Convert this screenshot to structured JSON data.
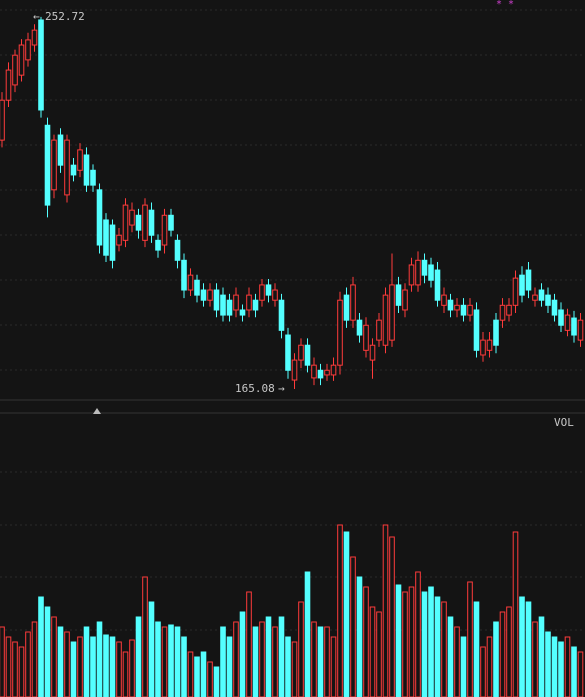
{
  "chart_data": {
    "type": "candlestick",
    "up_color": "#ff3b3b",
    "down_color": "#54ffff",
    "ylim": [
      162.5,
      256.7
    ],
    "open": [
      223.7,
      233.1,
      236.7,
      239.0,
      242.6,
      246.1,
      252.0,
      227.2,
      212.0,
      224.9,
      210.8,
      217.8,
      216.6,
      220.2,
      216.6,
      212.0,
      204.9,
      203.7,
      199.0,
      200.1,
      203.7,
      206.0,
      200.1,
      207.2,
      200.1,
      199.0,
      206.0,
      200.1,
      195.4,
      188.4,
      190.7,
      188.4,
      186.0,
      188.4,
      187.2,
      186.0,
      183.7,
      183.7,
      183.7,
      186.0,
      186.0,
      189.6,
      186.0,
      186.0,
      177.8,
      167.2,
      171.9,
      175.4,
      167.7,
      169.5,
      168.4,
      168.4,
      170.7,
      187.2,
      181.3,
      181.3,
      174.2,
      171.9,
      176.6,
      175.4,
      176.6,
      189.6,
      183.7,
      189.6,
      189.6,
      195.4,
      194.3,
      193.1,
      184.8,
      186.0,
      183.7,
      184.8,
      182.5,
      183.7,
      173.1,
      174.2,
      181.3,
      181.3,
      182.5,
      184.8,
      191.9,
      193.1,
      186.0,
      188.4,
      187.2,
      186.0,
      183.7,
      178.9,
      181.8,
      176.6
    ],
    "high": [
      235.0,
      242.0,
      245.0,
      247.5,
      249.0,
      251.0,
      252.72,
      229.0,
      225.0,
      226.5,
      225.0,
      219.5,
      223.0,
      222.0,
      218.0,
      213.5,
      206.5,
      205.0,
      203.0,
      210.0,
      209.0,
      207.5,
      210.0,
      209.0,
      201.5,
      207.5,
      207.5,
      201.5,
      197.0,
      193.5,
      192.0,
      190.0,
      190.0,
      190.0,
      189.0,
      187.5,
      189.0,
      185.0,
      189.0,
      187.5,
      191.0,
      191.0,
      190.0,
      187.5,
      179.5,
      173.5,
      177.0,
      177.0,
      172.5,
      171.0,
      171.0,
      172.5,
      188.0,
      189.0,
      191.5,
      183.0,
      182.0,
      177.0,
      183.0,
      189.0,
      197.0,
      191.5,
      190.0,
      196.0,
      197.5,
      197.0,
      196.0,
      195.0,
      189.0,
      187.5,
      186.5,
      186.5,
      186.5,
      185.5,
      178.5,
      178.5,
      183.0,
      186.5,
      186.5,
      193.0,
      194.0,
      195.0,
      189.0,
      190.0,
      189.0,
      187.5,
      185.5,
      184.0,
      183.5,
      183.0
    ],
    "low": [
      222.0,
      231.5,
      235.0,
      237.5,
      241.0,
      244.5,
      229.0,
      205.5,
      210.0,
      216.0,
      209.0,
      214.0,
      215.0,
      211.5,
      211.5,
      197.0,
      195.0,
      193.5,
      197.5,
      198.5,
      202.0,
      200.5,
      198.5,
      199.5,
      196.0,
      197.0,
      201.0,
      193.5,
      186.5,
      187.0,
      185.5,
      184.5,
      184.5,
      182.0,
      181.0,
      181.0,
      182.0,
      181.0,
      182.0,
      182.0,
      184.5,
      185.5,
      184.5,
      177.0,
      167.5,
      165.08,
      170.0,
      169.0,
      166.0,
      166.0,
      167.0,
      167.0,
      168.5,
      179.5,
      179.5,
      176.0,
      172.5,
      167.5,
      175.0,
      173.5,
      175.0,
      183.0,
      182.0,
      188.0,
      188.0,
      190.0,
      189.0,
      184.5,
      183.0,
      182.0,
      182.0,
      181.0,
      181.0,
      172.5,
      171.5,
      172.5,
      173.5,
      179.5,
      181.0,
      183.0,
      185.5,
      186.5,
      184.5,
      184.5,
      183.0,
      181.0,
      178.5,
      177.5,
      176.0,
      175.0
    ],
    "close": [
      233.1,
      240.2,
      243.7,
      246.1,
      247.3,
      249.6,
      230.8,
      208.4,
      223.7,
      217.8,
      223.7,
      215.5,
      221.4,
      213.1,
      213.1,
      199.0,
      196.6,
      195.4,
      201.3,
      208.4,
      207.2,
      202.5,
      208.4,
      201.3,
      197.8,
      206.0,
      202.5,
      195.4,
      188.4,
      191.9,
      187.2,
      186.0,
      188.4,
      183.7,
      182.5,
      182.5,
      187.2,
      182.5,
      187.2,
      183.7,
      189.6,
      187.2,
      188.4,
      178.9,
      169.5,
      171.9,
      175.4,
      170.7,
      170.7,
      167.7,
      169.5,
      170.7,
      186.0,
      181.3,
      189.6,
      177.8,
      180.1,
      175.4,
      181.3,
      187.2,
      189.6,
      184.8,
      188.4,
      194.3,
      195.4,
      191.9,
      190.7,
      186.0,
      187.2,
      183.7,
      184.8,
      182.5,
      184.8,
      174.2,
      176.6,
      176.6,
      175.4,
      184.8,
      184.8,
      191.2,
      187.2,
      188.4,
      187.2,
      186.0,
      184.8,
      182.5,
      180.1,
      182.5,
      177.8,
      181.3
    ],
    "volume_ylim": [
      0,
      200
    ],
    "volume": [
      70,
      60,
      55,
      50,
      65,
      75,
      100,
      90,
      80,
      70,
      65,
      55,
      60,
      70,
      60,
      75,
      62,
      60,
      55,
      45,
      57,
      80,
      120,
      95,
      75,
      70,
      72,
      70,
      60,
      45,
      40,
      45,
      35,
      30,
      70,
      60,
      75,
      85,
      105,
      70,
      75,
      80,
      70,
      80,
      60,
      55,
      95,
      125,
      75,
      70,
      70,
      60,
      172,
      165,
      140,
      120,
      110,
      90,
      85,
      172,
      160,
      112,
      105,
      110,
      125,
      105,
      110,
      100,
      95,
      80,
      70,
      60,
      115,
      95,
      50,
      60,
      75,
      85,
      90,
      165,
      100,
      95,
      75,
      80,
      65,
      60,
      55,
      60,
      50,
      45
    ],
    "annotations": [
      "252.72",
      "165.08"
    ],
    "volume_label": "VOL"
  }
}
